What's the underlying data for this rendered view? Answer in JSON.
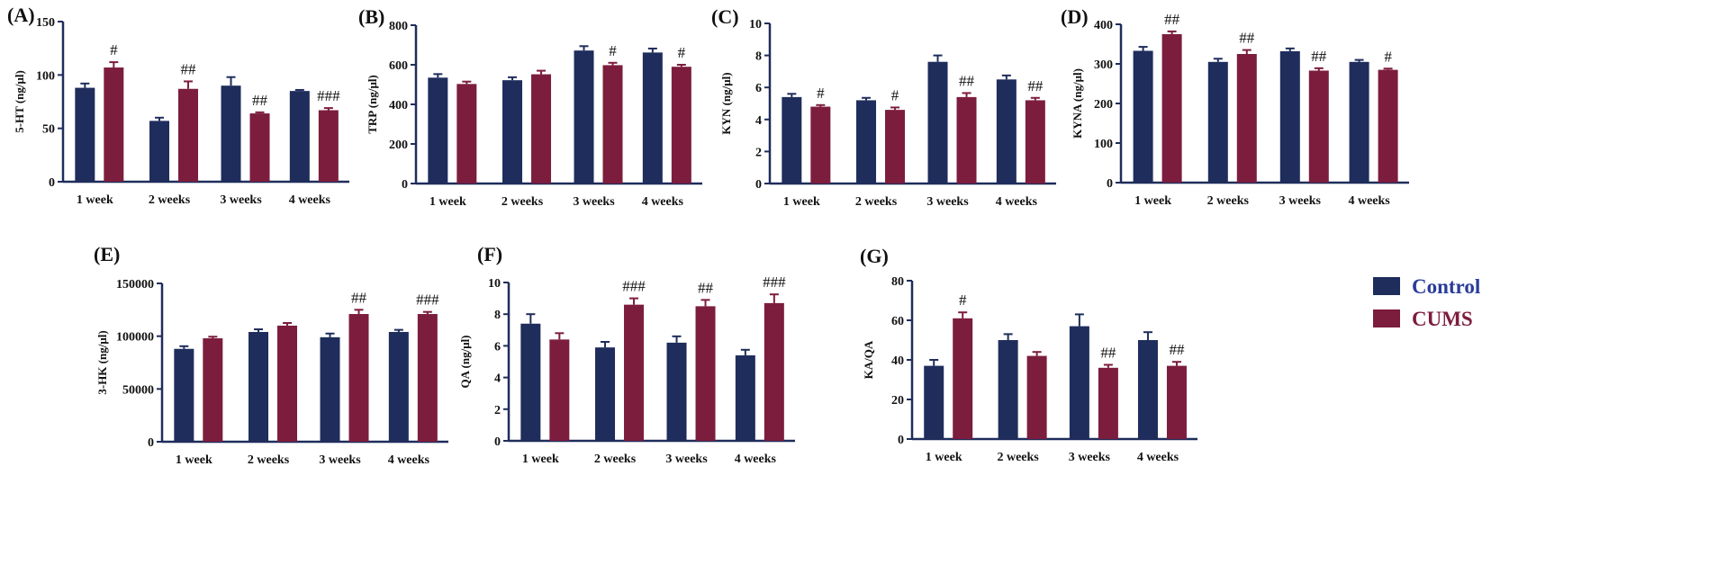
{
  "legend": {
    "control_label": "Control",
    "cums_label": "CUMS",
    "control_color": "#1f2d5c",
    "cums_color": "#7c1d3e"
  },
  "chart_data": [
    {
      "panel": "(A)",
      "type": "bar",
      "ylabel": "5-HT (ng/μl)",
      "categories": [
        "1 week",
        "2 weeks",
        "3 weeks",
        "4 weeks"
      ],
      "ylim": [
        0,
        150
      ],
      "yticks": [
        0,
        50,
        100,
        150
      ],
      "series": [
        {
          "name": "Control",
          "values": [
            88,
            57,
            90,
            85
          ],
          "errors": [
            4,
            3,
            8,
            1
          ]
        },
        {
          "name": "CUMS",
          "values": [
            107,
            87,
            64,
            67
          ],
          "errors": [
            5,
            7,
            1,
            2
          ]
        }
      ],
      "annotations": [
        "#",
        "##",
        "##",
        "###"
      ]
    },
    {
      "panel": "(B)",
      "type": "bar",
      "ylabel": "TRP (ng/μl)",
      "categories": [
        "1 week",
        "2 weeks",
        "3 weeks",
        "4 weeks"
      ],
      "ylim": [
        0,
        800
      ],
      "yticks": [
        0,
        200,
        400,
        600,
        800
      ],
      "series": [
        {
          "name": "Control",
          "values": [
            535,
            522,
            672,
            662
          ],
          "errors": [
            18,
            15,
            22,
            20
          ]
        },
        {
          "name": "CUMS",
          "values": [
            503,
            552,
            598,
            590
          ],
          "errors": [
            12,
            18,
            12,
            10
          ]
        }
      ],
      "annotations": [
        "",
        "",
        "#",
        "#"
      ]
    },
    {
      "panel": "(C)",
      "type": "bar",
      "ylabel": "KYN (ng/μl)",
      "categories": [
        "1 week",
        "2 weeks",
        "3 weeks",
        "4 weeks"
      ],
      "ylim": [
        0,
        10
      ],
      "yticks": [
        0,
        2,
        4,
        6,
        8,
        10
      ],
      "series": [
        {
          "name": "Control",
          "values": [
            5.4,
            5.2,
            7.6,
            6.5
          ],
          "errors": [
            0.2,
            0.15,
            0.4,
            0.25
          ]
        },
        {
          "name": "CUMS",
          "values": [
            4.8,
            4.6,
            5.4,
            5.2
          ],
          "errors": [
            0.1,
            0.15,
            0.25,
            0.15
          ]
        }
      ],
      "annotations": [
        "#",
        "#",
        "##",
        "##"
      ]
    },
    {
      "panel": "(D)",
      "type": "bar",
      "ylabel": "KYNA (ng/μl)",
      "categories": [
        "1 week",
        "2 weeks",
        "3 weeks",
        "4 weeks"
      ],
      "ylim": [
        0,
        400
      ],
      "yticks": [
        0,
        100,
        200,
        300,
        400
      ],
      "series": [
        {
          "name": "Control",
          "values": [
            333,
            305,
            332,
            305
          ],
          "errors": [
            10,
            8,
            7,
            5
          ]
        },
        {
          "name": "CUMS",
          "values": [
            375,
            325,
            283,
            285
          ],
          "errors": [
            7,
            10,
            6,
            3
          ]
        }
      ],
      "annotations": [
        "##",
        "##",
        "##",
        "#"
      ]
    },
    {
      "panel": "(E)",
      "type": "bar",
      "ylabel": "3-HK (ng/μl)",
      "categories": [
        "1 week",
        "2 weeks",
        "3 weeks",
        "4 weeks"
      ],
      "ylim": [
        0,
        150000
      ],
      "yticks": [
        0,
        50000,
        100000,
        150000
      ],
      "series": [
        {
          "name": "Control",
          "values": [
            88000,
            104000,
            99000,
            104000
          ],
          "errors": [
            2500,
            2500,
            3500,
            2000
          ]
        },
        {
          "name": "CUMS",
          "values": [
            98000,
            110000,
            121000,
            121000
          ],
          "errors": [
            1500,
            2500,
            4000,
            2000
          ]
        }
      ],
      "annotations": [
        "",
        "",
        "##",
        "###"
      ]
    },
    {
      "panel": "(F)",
      "type": "bar",
      "ylabel": "QA (ng/μl)",
      "categories": [
        "1 week",
        "2 weeks",
        "3 weeks",
        "4 weeks"
      ],
      "ylim": [
        0,
        10
      ],
      "yticks": [
        0,
        2,
        4,
        6,
        8,
        10
      ],
      "series": [
        {
          "name": "Control",
          "values": [
            7.4,
            5.9,
            6.2,
            5.4
          ],
          "errors": [
            0.6,
            0.35,
            0.4,
            0.35
          ]
        },
        {
          "name": "CUMS",
          "values": [
            6.4,
            8.6,
            8.5,
            8.7
          ],
          "errors": [
            0.4,
            0.4,
            0.4,
            0.55
          ]
        }
      ],
      "annotations": [
        "",
        "###",
        "##",
        "###"
      ]
    },
    {
      "panel": "(G)",
      "type": "bar",
      "ylabel": "KA/QA",
      "categories": [
        "1 week",
        "2 weeks",
        "3 weeks",
        "4 weeks"
      ],
      "ylim": [
        0,
        80
      ],
      "yticks": [
        0,
        20,
        40,
        60,
        80
      ],
      "series": [
        {
          "name": "Control",
          "values": [
            37,
            50,
            57,
            50
          ],
          "errors": [
            3,
            3,
            6,
            4
          ]
        },
        {
          "name": "CUMS",
          "values": [
            61,
            42,
            36,
            37
          ],
          "errors": [
            3,
            2,
            1.5,
            2
          ]
        }
      ],
      "annotations": [
        "#",
        "",
        "##",
        "##"
      ]
    }
  ]
}
